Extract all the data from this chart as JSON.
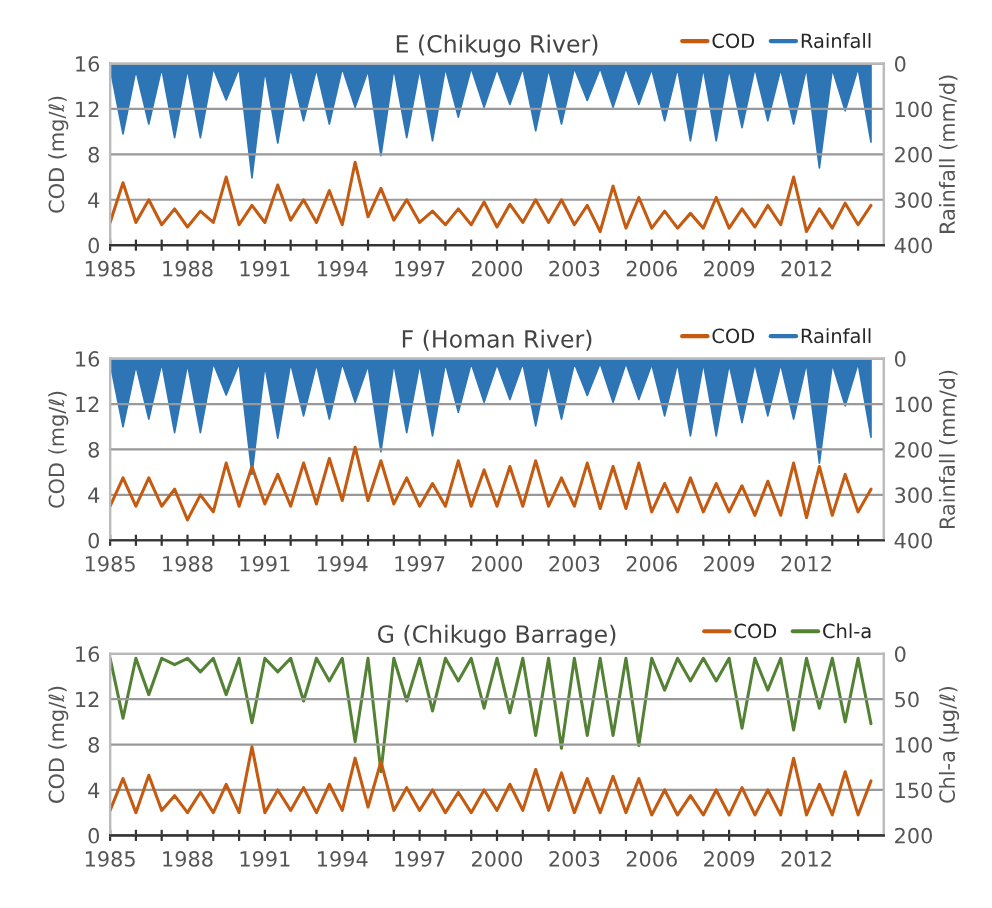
{
  "chart_data": [
    {
      "type": "line",
      "title": "E (Chikugo River)",
      "ylabel": "COD (mg/ℓ)",
      "y2label": "Rainfall (mm/d)",
      "xlim": [
        1985,
        2015
      ],
      "ylim": [
        0,
        16
      ],
      "yticks": [
        0,
        4,
        8,
        12,
        16
      ],
      "y2lim": [
        400,
        0
      ],
      "y2ticks": [
        0,
        100,
        200,
        300,
        400
      ],
      "xticks": [
        1985,
        {
          "value": 1986,
          "label": null
        },
        {
          "value": 1987,
          "label": null
        },
        1988,
        {
          "value": 1989,
          "label": null
        },
        {
          "value": 1990,
          "label": null
        },
        1991,
        {
          "value": 1992,
          "label": null
        },
        {
          "value": 1993,
          "label": null
        },
        1994,
        {
          "value": 1995,
          "label": null
        },
        {
          "value": 1996,
          "label": null
        },
        1997,
        {
          "value": 1998,
          "label": null
        },
        {
          "value": 1999,
          "label": null
        },
        2000,
        {
          "value": 2001,
          "label": null
        },
        {
          "value": 2002,
          "label": null
        },
        2003,
        {
          "value": 2004,
          "label": null
        },
        {
          "value": 2005,
          "label": null
        },
        2006,
        {
          "value": 2007,
          "label": null
        },
        {
          "value": 2008,
          "label": null
        },
        2009,
        {
          "value": 2010,
          "label": null
        },
        {
          "value": 2011,
          "label": null
        },
        2012,
        {
          "value": 2013,
          "label": null
        },
        {
          "value": 2014,
          "label": null
        }
      ],
      "grid": "y",
      "legend": "top right",
      "x": [
        1985.0,
        1985.5,
        1986.0,
        1986.5,
        1987.0,
        1987.5,
        1988.0,
        1988.5,
        1989.0,
        1989.5,
        1990.0,
        1990.5,
        1991.0,
        1991.5,
        1992.0,
        1992.5,
        1993.0,
        1993.5,
        1994.0,
        1994.5,
        1995.0,
        1995.5,
        1996.0,
        1996.5,
        1997.0,
        1997.5,
        1998.0,
        1998.5,
        1999.0,
        1999.5,
        2000.0,
        2000.5,
        2001.0,
        2001.5,
        2002.0,
        2002.5,
        2003.0,
        2003.5,
        2004.0,
        2004.5,
        2005.0,
        2005.5,
        2006.0,
        2006.5,
        2007.0,
        2007.5,
        2008.0,
        2008.5,
        2009.0,
        2009.5,
        2010.0,
        2010.5,
        2011.0,
        2011.5,
        2012.0,
        2012.5,
        2013.0,
        2013.5,
        2014.0,
        2014.5
      ],
      "series": [
        {
          "name": "COD",
          "axis": "y",
          "color": "#c55a11",
          "values": [
            2.0,
            5.5,
            2.0,
            4.0,
            1.8,
            3.2,
            1.6,
            3.0,
            2.0,
            6.0,
            1.8,
            3.5,
            2.0,
            5.3,
            2.2,
            4.0,
            2.0,
            4.8,
            1.8,
            7.3,
            2.5,
            5.0,
            2.2,
            4.0,
            2.0,
            3.0,
            1.8,
            3.2,
            1.8,
            3.8,
            1.6,
            3.6,
            2.0,
            4.0,
            2.0,
            4.0,
            1.8,
            3.5,
            1.2,
            5.2,
            1.5,
            4.2,
            1.5,
            3.0,
            1.5,
            2.8,
            1.5,
            4.2,
            1.5,
            3.2,
            1.6,
            3.5,
            1.8,
            6.0,
            1.2,
            3.2,
            1.5,
            3.7,
            1.8,
            3.5
          ]
        },
        {
          "name": "Rainfall",
          "type": "area",
          "axis": "y2",
          "color": "#2e75b6",
          "values": [
            10,
            155,
            15,
            133,
            10,
            163,
            12,
            163,
            10,
            80,
            10,
            252,
            15,
            175,
            10,
            126,
            12,
            133,
            10,
            96,
            15,
            203,
            10,
            163,
            12,
            170,
            10,
            118,
            10,
            96,
            12,
            90,
            10,
            148,
            12,
            133,
            10,
            81,
            10,
            96,
            10,
            90,
            12,
            126,
            10,
            170,
            10,
            170,
            12,
            141,
            10,
            126,
            12,
            133,
            10,
            230,
            12,
            104,
            10,
            173
          ]
        }
      ]
    },
    {
      "type": "line",
      "title": "F (Homan River)",
      "ylabel": "COD (mg/ℓ)",
      "y2label": "Rainfall (mm/d)",
      "xlim": [
        1985,
        2015
      ],
      "ylim": [
        0,
        16
      ],
      "yticks": [
        0,
        4,
        8,
        12,
        16
      ],
      "y2lim": [
        400,
        0
      ],
      "y2ticks": [
        0,
        100,
        200,
        300,
        400
      ],
      "xticks": [
        1985,
        {
          "value": 1986,
          "label": null
        },
        {
          "value": 1987,
          "label": null
        },
        1988,
        {
          "value": 1989,
          "label": null
        },
        {
          "value": 1990,
          "label": null
        },
        1991,
        {
          "value": 1992,
          "label": null
        },
        {
          "value": 1993,
          "label": null
        },
        1994,
        {
          "value": 1995,
          "label": null
        },
        {
          "value": 1996,
          "label": null
        },
        1997,
        {
          "value": 1998,
          "label": null
        },
        {
          "value": 1999,
          "label": null
        },
        2000,
        {
          "value": 2001,
          "label": null
        },
        {
          "value": 2002,
          "label": null
        },
        2003,
        {
          "value": 2004,
          "label": null
        },
        {
          "value": 2005,
          "label": null
        },
        2006,
        {
          "value": 2007,
          "label": null
        },
        {
          "value": 2008,
          "label": null
        },
        2009,
        {
          "value": 2010,
          "label": null
        },
        {
          "value": 2011,
          "label": null
        },
        2012,
        {
          "value": 2013,
          "label": null
        },
        {
          "value": 2014,
          "label": null
        }
      ],
      "grid": "y",
      "legend": "top right",
      "x": [
        1985.0,
        1985.5,
        1986.0,
        1986.5,
        1987.0,
        1987.5,
        1988.0,
        1988.5,
        1989.0,
        1989.5,
        1990.0,
        1990.5,
        1991.0,
        1991.5,
        1992.0,
        1992.5,
        1993.0,
        1993.5,
        1994.0,
        1994.5,
        1995.0,
        1995.5,
        1996.0,
        1996.5,
        1997.0,
        1997.5,
        1998.0,
        1998.5,
        1999.0,
        1999.5,
        2000.0,
        2000.5,
        2001.0,
        2001.5,
        2002.0,
        2002.5,
        2003.0,
        2003.5,
        2004.0,
        2004.5,
        2005.0,
        2005.5,
        2006.0,
        2006.5,
        2007.0,
        2007.5,
        2008.0,
        2008.5,
        2009.0,
        2009.5,
        2010.0,
        2010.5,
        2011.0,
        2011.5,
        2012.0,
        2012.5,
        2013.0,
        2013.5,
        2014.0,
        2014.5
      ],
      "series": [
        {
          "name": "COD",
          "axis": "y",
          "color": "#c55a11",
          "values": [
            3.0,
            5.5,
            3.0,
            5.5,
            3.0,
            4.5,
            1.8,
            4.0,
            2.5,
            6.8,
            3.0,
            6.5,
            3.2,
            5.8,
            3.0,
            6.8,
            3.2,
            7.2,
            3.5,
            8.2,
            3.5,
            7.0,
            3.2,
            5.5,
            3.0,
            5.0,
            3.0,
            7.0,
            3.0,
            6.2,
            3.0,
            6.5,
            3.0,
            7.0,
            3.0,
            5.5,
            3.0,
            6.8,
            2.8,
            6.5,
            2.8,
            6.8,
            2.5,
            5.0,
            2.5,
            5.5,
            2.5,
            5.0,
            2.5,
            4.8,
            2.2,
            5.2,
            2.2,
            6.8,
            2.0,
            6.5,
            2.2,
            5.8,
            2.5,
            4.5
          ]
        },
        {
          "name": "Rainfall",
          "type": "area",
          "axis": "y2",
          "color": "#2e75b6",
          "values": [
            10,
            150,
            15,
            133,
            10,
            163,
            12,
            163,
            10,
            80,
            10,
            255,
            15,
            175,
            10,
            126,
            12,
            133,
            10,
            96,
            15,
            205,
            10,
            163,
            12,
            170,
            10,
            118,
            10,
            96,
            12,
            90,
            10,
            148,
            12,
            133,
            10,
            81,
            10,
            96,
            10,
            90,
            12,
            126,
            10,
            170,
            10,
            170,
            12,
            141,
            10,
            126,
            12,
            133,
            10,
            230,
            12,
            104,
            10,
            173
          ]
        }
      ]
    },
    {
      "type": "line",
      "title": "G (Chikugo Barrage)",
      "ylabel": "COD (mg/ℓ)",
      "y2label": "Chl-a (μg/ℓ)",
      "xlim": [
        1985,
        2015
      ],
      "ylim": [
        0,
        16
      ],
      "yticks": [
        0,
        4,
        8,
        12,
        16
      ],
      "y2lim": [
        200,
        0
      ],
      "y2ticks": [
        0,
        50,
        100,
        150,
        200
      ],
      "xticks": [
        1985,
        {
          "value": 1986,
          "label": null
        },
        {
          "value": 1987,
          "label": null
        },
        1988,
        {
          "value": 1989,
          "label": null
        },
        {
          "value": 1990,
          "label": null
        },
        1991,
        {
          "value": 1992,
          "label": null
        },
        {
          "value": 1993,
          "label": null
        },
        1994,
        {
          "value": 1995,
          "label": null
        },
        {
          "value": 1996,
          "label": null
        },
        1997,
        {
          "value": 1998,
          "label": null
        },
        {
          "value": 1999,
          "label": null
        },
        2000,
        {
          "value": 2001,
          "label": null
        },
        {
          "value": 2002,
          "label": null
        },
        2003,
        {
          "value": 2004,
          "label": null
        },
        {
          "value": 2005,
          "label": null
        },
        2006,
        {
          "value": 2007,
          "label": null
        },
        {
          "value": 2008,
          "label": null
        },
        2009,
        {
          "value": 2010,
          "label": null
        },
        {
          "value": 2011,
          "label": null
        },
        2012,
        {
          "value": 2013,
          "label": null
        },
        {
          "value": 2014,
          "label": null
        }
      ],
      "grid": "y",
      "legend": "top right",
      "x": [
        1985.0,
        1985.5,
        1986.0,
        1986.5,
        1987.0,
        1987.5,
        1988.0,
        1988.5,
        1989.0,
        1989.5,
        1990.0,
        1990.5,
        1991.0,
        1991.5,
        1992.0,
        1992.5,
        1993.0,
        1993.5,
        1994.0,
        1994.5,
        1995.0,
        1995.5,
        1996.0,
        1996.5,
        1997.0,
        1997.5,
        1998.0,
        1998.5,
        1999.0,
        1999.5,
        2000.0,
        2000.5,
        2001.0,
        2001.5,
        2002.0,
        2002.5,
        2003.0,
        2003.5,
        2004.0,
        2004.5,
        2005.0,
        2005.5,
        2006.0,
        2006.5,
        2007.0,
        2007.5,
        2008.0,
        2008.5,
        2009.0,
        2009.5,
        2010.0,
        2010.5,
        2011.0,
        2011.5,
        2012.0,
        2012.5,
        2013.0,
        2013.5,
        2014.0,
        2014.5
      ],
      "series": [
        {
          "name": "COD",
          "axis": "y",
          "color": "#c55a11",
          "values": [
            2.2,
            5.0,
            2.0,
            5.3,
            2.2,
            3.5,
            2.0,
            3.8,
            2.0,
            4.5,
            2.0,
            7.8,
            2.0,
            4.0,
            2.2,
            4.2,
            2.0,
            4.5,
            2.2,
            6.8,
            2.5,
            6.5,
            2.2,
            4.2,
            2.2,
            4.0,
            2.0,
            3.8,
            2.0,
            4.0,
            2.2,
            4.5,
            2.2,
            5.8,
            2.2,
            5.5,
            2.0,
            5.0,
            2.0,
            5.2,
            2.0,
            5.0,
            1.8,
            4.0,
            1.8,
            3.5,
            1.8,
            4.0,
            1.8,
            4.2,
            1.8,
            4.0,
            1.8,
            6.8,
            1.8,
            4.5,
            1.8,
            5.6,
            1.8,
            4.8
          ]
        },
        {
          "name": "Chl-a",
          "axis": "y2",
          "color": "#548235",
          "values": [
            5,
            71,
            5,
            45,
            5,
            12,
            5,
            20,
            5,
            45,
            5,
            76,
            5,
            20,
            5,
            52,
            5,
            30,
            5,
            97,
            5,
            130,
            5,
            52,
            5,
            63,
            5,
            30,
            5,
            60,
            5,
            65,
            5,
            90,
            5,
            104,
            5,
            90,
            5,
            90,
            5,
            101,
            5,
            40,
            5,
            30,
            5,
            30,
            5,
            82,
            5,
            40,
            5,
            84,
            5,
            60,
            5,
            75,
            5,
            77
          ]
        }
      ]
    }
  ]
}
